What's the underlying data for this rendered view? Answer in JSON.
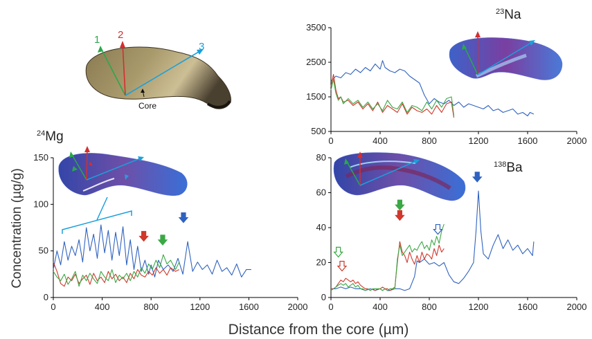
{
  "figure": {
    "xlabel": "Distance from the core (µm)",
    "ylabel": "Concentration (µg/g)",
    "core_label": "Core",
    "transects": [
      {
        "num": "1",
        "color": "#2aa84a"
      },
      {
        "num": "2",
        "color": "#d32f2f"
      },
      {
        "num": "3",
        "color": "#1aa0dc"
      }
    ],
    "colors": {
      "t1": "#3aa845",
      "t2": "#d0382b",
      "t3": "#2f62c0"
    }
  },
  "chart_data": [
    {
      "type": "line",
      "panel": "Na",
      "element_mass": "23",
      "element_symbol": "Na",
      "xlim": [
        0,
        2000
      ],
      "ylim": [
        500,
        3500
      ],
      "x_ticks": [
        "0",
        "400",
        "800",
        "1200",
        "1600",
        "2000"
      ],
      "y_ticks": [
        "500",
        "1500",
        "2500",
        "3500"
      ],
      "series": [
        {
          "key": "t3",
          "x": [
            0,
            40,
            80,
            120,
            160,
            200,
            240,
            280,
            320,
            360,
            400,
            420,
            440,
            480,
            520,
            560,
            600,
            640,
            680,
            720,
            760,
            800,
            840,
            880,
            920,
            960,
            1000,
            1040,
            1080,
            1120,
            1160,
            1200,
            1240,
            1280,
            1320,
            1360,
            1400,
            1440,
            1480,
            1520,
            1560,
            1600,
            1620,
            1650
          ],
          "y": [
            1950,
            2100,
            2050,
            2200,
            2150,
            2300,
            2200,
            2350,
            2250,
            2450,
            2300,
            2550,
            2350,
            2250,
            2200,
            2300,
            2250,
            2100,
            2000,
            1900,
            1550,
            1300,
            1450,
            1350,
            1300,
            1400,
            1250,
            1350,
            1200,
            1300,
            1250,
            1200,
            1150,
            1250,
            1100,
            1150,
            1050,
            1100,
            1150,
            1000,
            1050,
            950,
            1050,
            1000
          ]
        },
        {
          "key": "t2",
          "x": [
            0,
            20,
            40,
            60,
            80,
            100,
            140,
            180,
            220,
            260,
            300,
            340,
            380,
            420,
            460,
            500,
            540,
            580,
            620,
            660,
            700,
            740,
            780,
            820,
            860,
            900,
            940,
            980,
            1000
          ],
          "y": [
            1800,
            2150,
            1700,
            1450,
            1500,
            1350,
            1400,
            1250,
            1350,
            1150,
            1300,
            1100,
            1350,
            1050,
            1250,
            1150,
            1050,
            1300,
            1000,
            1200,
            1100,
            1050,
            1150,
            1000,
            1250,
            1050,
            1300,
            1350,
            900
          ]
        },
        {
          "key": "t1",
          "x": [
            0,
            20,
            40,
            60,
            80,
            100,
            140,
            180,
            220,
            260,
            300,
            340,
            380,
            420,
            460,
            500,
            540,
            580,
            620,
            660,
            700,
            740,
            780,
            820,
            860,
            900,
            940,
            980,
            1000
          ],
          "y": [
            1700,
            2000,
            1600,
            1400,
            1500,
            1300,
            1450,
            1300,
            1400,
            1200,
            1350,
            1150,
            1300,
            1100,
            1400,
            1200,
            1150,
            1350,
            1050,
            1250,
            1200,
            1100,
            1350,
            1150,
            1400,
            1200,
            1450,
            1500,
            950
          ]
        }
      ]
    },
    {
      "type": "line",
      "panel": "Mg",
      "element_mass": "24",
      "element_symbol": "Mg",
      "xlim": [
        0,
        2000
      ],
      "ylim": [
        0,
        150
      ],
      "x_ticks": [
        "0",
        "400",
        "800",
        "1200",
        "1600",
        "2000"
      ],
      "y_ticks": [
        "0",
        "50",
        "100",
        "150"
      ],
      "series": [
        {
          "key": "t3",
          "x": [
            0,
            30,
            60,
            90,
            120,
            150,
            180,
            210,
            240,
            270,
            300,
            330,
            360,
            390,
            420,
            450,
            480,
            510,
            540,
            570,
            600,
            630,
            660,
            690,
            720,
            750,
            780,
            800,
            830,
            860,
            900,
            940,
            980,
            1020,
            1060,
            1100,
            1140,
            1180,
            1220,
            1260,
            1300,
            1340,
            1380,
            1420,
            1460,
            1500,
            1540,
            1580,
            1620
          ],
          "y": [
            30,
            50,
            35,
            60,
            40,
            55,
            45,
            62,
            38,
            75,
            50,
            68,
            42,
            78,
            48,
            72,
            40,
            70,
            45,
            76,
            35,
            62,
            30,
            55,
            28,
            40,
            25,
            35,
            22,
            40,
            30,
            35,
            28,
            42,
            25,
            60,
            28,
            38,
            30,
            35,
            25,
            40,
            28,
            32,
            24,
            36,
            22,
            30,
            30
          ]
        },
        {
          "key": "t2",
          "x": [
            0,
            30,
            60,
            90,
            120,
            150,
            180,
            210,
            240,
            270,
            300,
            330,
            360,
            390,
            420,
            450,
            480,
            510,
            540,
            570,
            600,
            630,
            660,
            690,
            720,
            750,
            780,
            810,
            840,
            870,
            900,
            930,
            960,
            1000,
            1030
          ],
          "y": [
            38,
            28,
            15,
            12,
            22,
            18,
            25,
            15,
            20,
            24,
            14,
            26,
            18,
            22,
            16,
            28,
            20,
            25,
            18,
            22,
            16,
            26,
            20,
            30,
            24,
            22,
            28,
            24,
            32,
            26,
            30,
            24,
            32,
            28,
            30
          ]
        },
        {
          "key": "t1",
          "x": [
            0,
            30,
            60,
            90,
            120,
            150,
            180,
            210,
            240,
            270,
            300,
            330,
            360,
            390,
            420,
            450,
            480,
            510,
            540,
            570,
            600,
            630,
            660,
            690,
            720,
            750,
            780,
            810,
            840,
            870,
            900,
            930,
            960,
            1000,
            1030
          ],
          "y": [
            28,
            22,
            18,
            25,
            14,
            20,
            28,
            12,
            24,
            18,
            26,
            20,
            15,
            28,
            22,
            18,
            30,
            16,
            24,
            20,
            26,
            18,
            28,
            22,
            32,
            26,
            36,
            30,
            40,
            32,
            46,
            36,
            40,
            30,
            38
          ]
        }
      ]
    },
    {
      "type": "line",
      "panel": "Ba",
      "element_mass": "138",
      "element_symbol": "Ba",
      "xlim": [
        0,
        2000
      ],
      "ylim": [
        0,
        80
      ],
      "x_ticks": [
        "0",
        "400",
        "800",
        "1200",
        "1600",
        "2000"
      ],
      "y_ticks": [
        "0",
        "20",
        "40",
        "60",
        "80"
      ],
      "series": [
        {
          "key": "t3",
          "x": [
            0,
            40,
            80,
            120,
            160,
            200,
            240,
            280,
            320,
            360,
            400,
            420,
            440,
            460,
            480,
            520,
            560,
            600,
            640,
            680,
            700,
            720,
            760,
            800,
            840,
            880,
            920,
            960,
            1000,
            1040,
            1080,
            1120,
            1160,
            1180,
            1200,
            1220,
            1240,
            1280,
            1320,
            1360,
            1400,
            1440,
            1480,
            1520,
            1560,
            1600,
            1640,
            1650
          ],
          "y": [
            5,
            5,
            6,
            5,
            6,
            5,
            5,
            4,
            5,
            4,
            5,
            4,
            5,
            4,
            4,
            5,
            5,
            4,
            5,
            12,
            21,
            20,
            22,
            19,
            20,
            18,
            20,
            13,
            9,
            8,
            11,
            15,
            20,
            38,
            61,
            38,
            25,
            22,
            30,
            36,
            28,
            33,
            27,
            30,
            25,
            28,
            24,
            32
          ]
        },
        {
          "key": "t2",
          "x": [
            0,
            20,
            40,
            60,
            80,
            100,
            120,
            140,
            160,
            180,
            200,
            220,
            240,
            260,
            280,
            300,
            320,
            340,
            360,
            380,
            400,
            420,
            440,
            460,
            480,
            500,
            520,
            540,
            560,
            580,
            600,
            620,
            640,
            660,
            680,
            700,
            720,
            740,
            760,
            780,
            800,
            820,
            840,
            860,
            880,
            900,
            920
          ],
          "y": [
            5,
            5,
            6,
            8,
            10,
            9,
            11,
            10,
            9,
            10,
            8,
            9,
            7,
            6,
            5,
            5,
            4,
            5,
            4,
            5,
            5,
            6,
            5,
            5,
            4,
            5,
            6,
            20,
            32,
            26,
            24,
            20,
            26,
            22,
            19,
            24,
            20,
            26,
            22,
            25,
            24,
            22,
            28,
            24,
            30,
            26,
            28
          ]
        },
        {
          "key": "t1",
          "x": [
            0,
            20,
            40,
            60,
            80,
            100,
            120,
            140,
            160,
            180,
            200,
            220,
            240,
            260,
            280,
            300,
            320,
            340,
            360,
            380,
            400,
            420,
            440,
            460,
            480,
            500,
            520,
            540,
            560,
            580,
            600,
            620,
            640,
            660,
            680,
            700,
            720,
            740,
            760,
            780,
            800,
            820,
            840,
            860,
            880,
            900,
            920
          ],
          "y": [
            4,
            5,
            6,
            7,
            8,
            7,
            8,
            6,
            7,
            8,
            6,
            7,
            5,
            5,
            4,
            5,
            4,
            5,
            5,
            5,
            5,
            4,
            5,
            4,
            5,
            5,
            5,
            22,
            30,
            24,
            26,
            28,
            30,
            26,
            28,
            27,
            30,
            32,
            28,
            30,
            27,
            33,
            30,
            35,
            31,
            38,
            42
          ]
        }
      ]
    }
  ]
}
